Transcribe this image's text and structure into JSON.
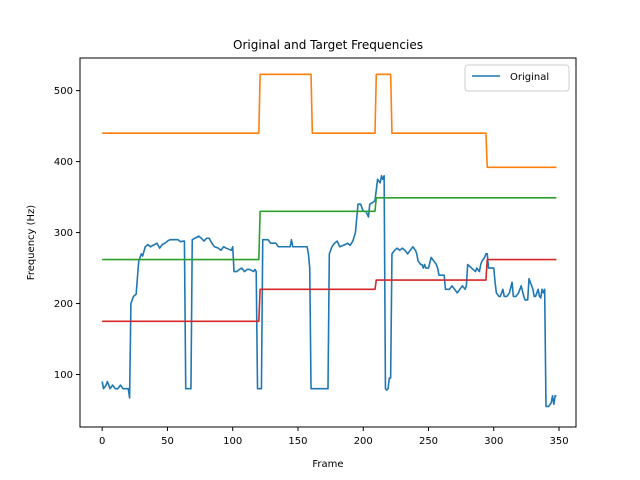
{
  "chart_data": {
    "type": "line",
    "title": "Original and Target Frequencies",
    "xlabel": "Frame",
    "ylabel": "Frequency (Hz)",
    "xlim": [
      -17,
      363
    ],
    "ylim": [
      26,
      546
    ],
    "xticks": [
      0,
      50,
      100,
      150,
      200,
      250,
      300,
      350
    ],
    "yticks": [
      100,
      200,
      300,
      400,
      500
    ],
    "grid": false,
    "legend": {
      "placement": "top-right",
      "entries": [
        "Original"
      ]
    },
    "series": [
      {
        "name": "Original",
        "color": "#1f77b4",
        "points": [
          [
            0,
            90
          ],
          [
            1,
            80
          ],
          [
            3,
            85
          ],
          [
            4,
            90
          ],
          [
            6,
            80
          ],
          [
            8,
            85
          ],
          [
            10,
            80
          ],
          [
            12,
            80
          ],
          [
            14,
            85
          ],
          [
            16,
            80
          ],
          [
            19,
            80
          ],
          [
            20,
            80
          ],
          [
            21,
            67
          ],
          [
            22,
            200
          ],
          [
            24,
            210
          ],
          [
            26,
            213
          ],
          [
            28,
            260
          ],
          [
            30,
            270
          ],
          [
            31,
            267
          ],
          [
            33,
            280
          ],
          [
            35,
            283
          ],
          [
            37,
            280
          ],
          [
            40,
            283
          ],
          [
            42,
            285
          ],
          [
            44,
            278
          ],
          [
            46,
            283
          ],
          [
            48,
            285
          ],
          [
            50,
            288
          ],
          [
            52,
            290
          ],
          [
            55,
            290
          ],
          [
            58,
            290
          ],
          [
            60,
            287
          ],
          [
            62,
            288
          ],
          [
            63,
            288
          ],
          [
            64,
            80
          ],
          [
            66,
            80
          ],
          [
            68,
            80
          ],
          [
            69,
            290
          ],
          [
            71,
            292
          ],
          [
            74,
            295
          ],
          [
            76,
            292
          ],
          [
            78,
            288
          ],
          [
            80,
            292
          ],
          [
            82,
            292
          ],
          [
            84,
            285
          ],
          [
            86,
            280
          ],
          [
            89,
            278
          ],
          [
            91,
            275
          ],
          [
            93,
            280
          ],
          [
            95,
            278
          ],
          [
            99,
            275
          ],
          [
            100,
            280
          ],
          [
            101,
            245
          ],
          [
            103,
            245
          ],
          [
            105,
            248
          ],
          [
            107,
            250
          ],
          [
            109,
            245
          ],
          [
            111,
            248
          ],
          [
            113,
            248
          ],
          [
            116,
            245
          ],
          [
            117,
            248
          ],
          [
            118,
            245
          ],
          [
            119,
            80
          ],
          [
            121,
            80
          ],
          [
            122,
            80
          ],
          [
            123,
            290
          ],
          [
            125,
            290
          ],
          [
            127,
            290
          ],
          [
            129,
            285
          ],
          [
            131,
            285
          ],
          [
            133,
            285
          ],
          [
            135,
            280
          ],
          [
            138,
            280
          ],
          [
            142,
            280
          ],
          [
            144,
            280
          ],
          [
            145,
            290
          ],
          [
            146,
            280
          ],
          [
            148,
            280
          ],
          [
            150,
            280
          ],
          [
            153,
            280
          ],
          [
            155,
            280
          ],
          [
            157,
            280
          ],
          [
            158,
            270
          ],
          [
            159,
            250
          ],
          [
            160,
            80
          ],
          [
            163,
            80
          ],
          [
            168,
            80
          ],
          [
            172,
            80
          ],
          [
            173,
            80
          ],
          [
            174,
            270
          ],
          [
            176,
            280
          ],
          [
            178,
            285
          ],
          [
            180,
            288
          ],
          [
            182,
            280
          ],
          [
            186,
            283
          ],
          [
            188,
            285
          ],
          [
            190,
            282
          ],
          [
            192,
            288
          ],
          [
            194,
            300
          ],
          [
            196,
            340
          ],
          [
            198,
            340
          ],
          [
            200,
            330
          ],
          [
            202,
            330
          ],
          [
            204,
            322
          ],
          [
            205,
            340
          ],
          [
            207,
            342
          ],
          [
            209,
            345
          ],
          [
            210,
            360
          ],
          [
            211,
            375
          ],
          [
            213,
            370
          ],
          [
            214,
            380
          ],
          [
            215,
            375
          ],
          [
            216,
            380
          ],
          [
            217,
            80
          ],
          [
            218,
            78
          ],
          [
            219,
            80
          ],
          [
            220,
            95
          ],
          [
            221,
            95
          ],
          [
            222,
            270
          ],
          [
            224,
            275
          ],
          [
            226,
            278
          ],
          [
            228,
            275
          ],
          [
            230,
            278
          ],
          [
            232,
            275
          ],
          [
            234,
            270
          ],
          [
            236,
            275
          ],
          [
            238,
            280
          ],
          [
            240,
            275
          ],
          [
            241,
            270
          ],
          [
            242,
            260
          ],
          [
            244,
            255
          ],
          [
            245,
            255
          ],
          [
            246,
            250
          ],
          [
            247,
            255
          ],
          [
            248,
            250
          ],
          [
            249,
            250
          ],
          [
            250,
            250
          ],
          [
            252,
            265
          ],
          [
            254,
            260
          ],
          [
            256,
            255
          ],
          [
            257,
            250
          ],
          [
            258,
            240
          ],
          [
            260,
            240
          ],
          [
            262,
            240
          ],
          [
            263,
            220
          ],
          [
            266,
            220
          ],
          [
            268,
            225
          ],
          [
            270,
            220
          ],
          [
            272,
            215
          ],
          [
            274,
            220
          ],
          [
            276,
            225
          ],
          [
            278,
            220
          ],
          [
            279,
            225
          ],
          [
            280,
            255
          ],
          [
            283,
            250
          ],
          [
            286,
            245
          ],
          [
            287,
            250
          ],
          [
            289,
            245
          ],
          [
            290,
            255
          ],
          [
            291,
            260
          ],
          [
            293,
            265
          ],
          [
            294,
            270
          ],
          [
            295,
            270
          ],
          [
            296,
            250
          ],
          [
            297,
            250
          ],
          [
            299,
            250
          ],
          [
            300,
            250
          ],
          [
            301,
            230
          ],
          [
            302,
            215
          ],
          [
            304,
            210
          ],
          [
            305,
            210
          ],
          [
            307,
            220
          ],
          [
            308,
            210
          ],
          [
            310,
            210
          ],
          [
            312,
            215
          ],
          [
            314,
            230
          ],
          [
            315,
            210
          ],
          [
            317,
            210
          ],
          [
            319,
            215
          ],
          [
            321,
            225
          ],
          [
            323,
            210
          ],
          [
            324,
            205
          ],
          [
            326,
            205
          ],
          [
            327,
            235
          ],
          [
            328,
            230
          ],
          [
            330,
            220
          ],
          [
            331,
            210
          ],
          [
            332,
            210
          ],
          [
            334,
            220
          ],
          [
            335,
            210
          ],
          [
            336,
            208
          ],
          [
            337,
            220
          ],
          [
            338,
            215
          ],
          [
            339,
            220
          ],
          [
            340,
            55
          ],
          [
            342,
            55
          ],
          [
            344,
            60
          ],
          [
            345,
            70
          ],
          [
            346,
            58
          ],
          [
            347,
            70
          ],
          [
            348,
            70
          ]
        ]
      },
      {
        "color": "#ff7f0e",
        "points": [
          [
            0,
            440
          ],
          [
            120,
            440
          ],
          [
            121,
            523
          ],
          [
            160,
            523
          ],
          [
            161,
            440
          ],
          [
            209,
            440
          ],
          [
            210,
            523
          ],
          [
            221,
            523
          ],
          [
            222,
            440
          ],
          [
            294,
            440
          ],
          [
            295,
            392
          ],
          [
            348,
            392
          ]
        ]
      },
      {
        "color": "#2ca02c",
        "points": [
          [
            0,
            262
          ],
          [
            120,
            262
          ],
          [
            121,
            330
          ],
          [
            209,
            330
          ],
          [
            210,
            349
          ],
          [
            348,
            349
          ]
        ]
      },
      {
        "color": "#d62728",
        "points": [
          [
            0,
            175
          ],
          [
            120,
            175
          ],
          [
            121,
            220
          ],
          [
            209,
            220
          ],
          [
            210,
            233
          ],
          [
            294,
            233
          ],
          [
            295,
            262
          ],
          [
            348,
            262
          ]
        ]
      }
    ]
  }
}
